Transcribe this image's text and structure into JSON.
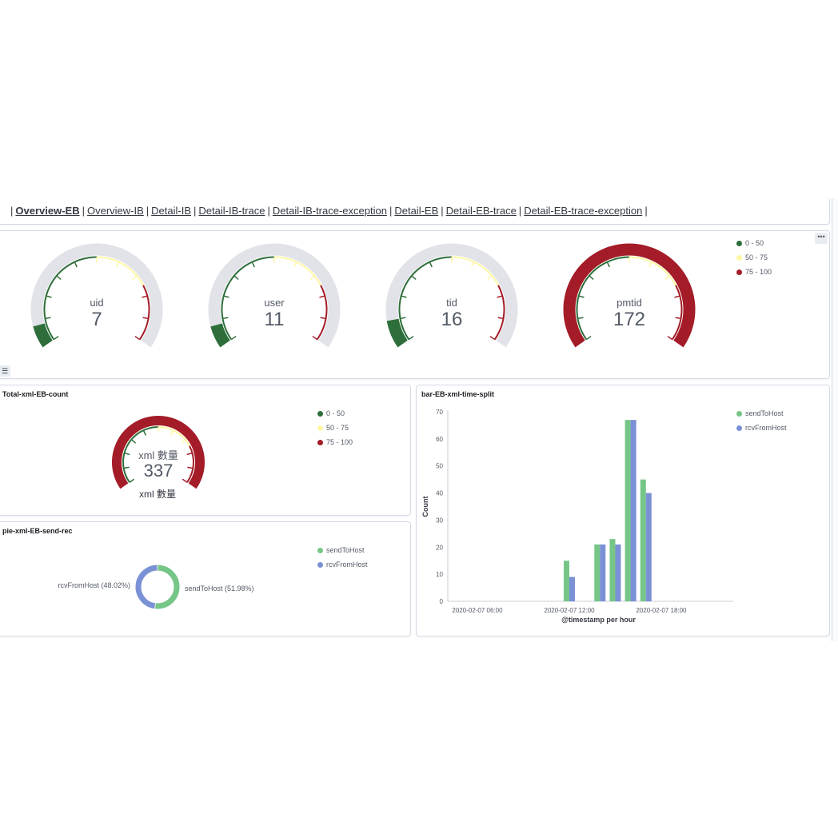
{
  "nav": {
    "links": [
      "Overview-EB",
      "Overview-IB",
      "Detail-IB",
      "Detail-IB-trace",
      "Detail-IB-trace-exception",
      "Detail-EB",
      "Detail-EB-trace",
      "Detail-EB-trace-exception"
    ],
    "active": "Overview-EB"
  },
  "colors": {
    "green": "#2e6e3a",
    "yellow": "#fdf7a6",
    "red": "#a41c27",
    "track": "#e1e3e8",
    "sendToHost": "#75c687",
    "rcvFromHost": "#7b91d6"
  },
  "gauges_panel": {
    "legend": [
      "0 - 50",
      "50 - 75",
      "75 - 100"
    ],
    "options_icon": "ellipsis-icon",
    "legend_toggle_icon": "list-icon",
    "gauges": [
      {
        "label": "uid",
        "value": "7"
      },
      {
        "label": "user",
        "value": "11"
      },
      {
        "label": "tid",
        "value": "16"
      },
      {
        "label": "pmtid",
        "value": "172"
      }
    ]
  },
  "total_panel": {
    "title": "Total-xml-EB-count",
    "legend": [
      "0 - 50",
      "50 - 75",
      "75 - 100"
    ],
    "gauge_label": "xml 數量",
    "gauge_value": "337",
    "caption": "xml 數量"
  },
  "pie_panel": {
    "title": "pie-xml-EB-send-rec",
    "legend": [
      "sendToHost",
      "rcvFromHost"
    ],
    "slices": [
      {
        "name": "sendToHost",
        "label": "sendToHost (51.98%)",
        "percent": 51.98
      },
      {
        "name": "rcvFromHost",
        "label": "rcvFromHost (48.02%)",
        "percent": 48.02
      }
    ]
  },
  "bar_panel": {
    "title": "bar-EB-xml-time-split",
    "legend": [
      "sendToHost",
      "rcvFromHost"
    ]
  },
  "chart_data": {
    "type": "bar",
    "title": "bar-EB-xml-time-split",
    "xlabel": "@timestamp per hour",
    "ylabel": "Count",
    "ylim": [
      0,
      70
    ],
    "yticks": [
      "0",
      "10",
      "20",
      "30",
      "40",
      "50",
      "60",
      "70"
    ],
    "xticks": [
      {
        "hour": 6,
        "label": "2020-02-07 06:00"
      },
      {
        "hour": 12,
        "label": "2020-02-07 12:00"
      },
      {
        "hour": 18,
        "label": "2020-02-07 18:00"
      }
    ],
    "x_hours": [
      12,
      14,
      15,
      16,
      17
    ],
    "series": [
      {
        "name": "sendToHost",
        "values": [
          15,
          21,
          23,
          67,
          45
        ]
      },
      {
        "name": "rcvFromHost",
        "values": [
          9,
          21,
          21,
          67,
          40
        ]
      }
    ],
    "legend_position": "top-right"
  }
}
